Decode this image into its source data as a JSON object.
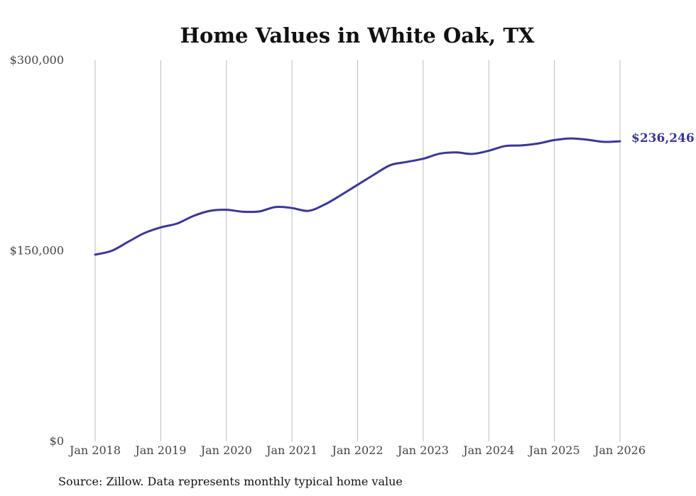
{
  "chart_data": {
    "type": "line",
    "title": "Home Values in White Oak, TX",
    "source": "Source: Zillow. Data represents monthly typical home value",
    "ylim": [
      0,
      300000
    ],
    "y_ticks": [
      {
        "value": 0,
        "label": "$0"
      },
      {
        "value": 150000,
        "label": "$150,000"
      },
      {
        "value": 300000,
        "label": "$300,000"
      }
    ],
    "xlim": [
      2018,
      2026
    ],
    "x_ticks": [
      {
        "value": 2018,
        "label": "Jan 2018"
      },
      {
        "value": 2019,
        "label": "Jan 2019"
      },
      {
        "value": 2020,
        "label": "Jan 2020"
      },
      {
        "value": 2021,
        "label": "Jan 2021"
      },
      {
        "value": 2022,
        "label": "Jan 2022"
      },
      {
        "value": 2023,
        "label": "Jan 2023"
      },
      {
        "value": 2024,
        "label": "Jan 2024"
      },
      {
        "value": 2025,
        "label": "Jan 2025"
      },
      {
        "value": 2026,
        "label": "Jan 2026"
      }
    ],
    "grid": "vertical",
    "series": [
      {
        "name": "Typical home value",
        "color": "#3b3796",
        "end_label": "$236,246",
        "x": [
          2018.0,
          2018.25,
          2018.5,
          2018.75,
          2019.0,
          2019.25,
          2019.5,
          2019.75,
          2020.0,
          2020.25,
          2020.5,
          2020.75,
          2021.0,
          2021.25,
          2021.5,
          2021.75,
          2022.0,
          2022.25,
          2022.5,
          2022.75,
          2023.0,
          2023.25,
          2023.5,
          2023.75,
          2024.0,
          2024.25,
          2024.5,
          2024.75,
          2025.0,
          2025.25,
          2025.5,
          2025.75,
          2026.0
        ],
        "y": [
          147000,
          150000,
          157000,
          164000,
          168500,
          171500,
          177500,
          181500,
          182300,
          180800,
          181000,
          184500,
          183700,
          181500,
          186500,
          194000,
          202000,
          210000,
          217500,
          220000,
          222500,
          226500,
          227500,
          226300,
          228800,
          232500,
          233000,
          234500,
          237200,
          238500,
          237500,
          235800,
          236246
        ]
      }
    ]
  }
}
